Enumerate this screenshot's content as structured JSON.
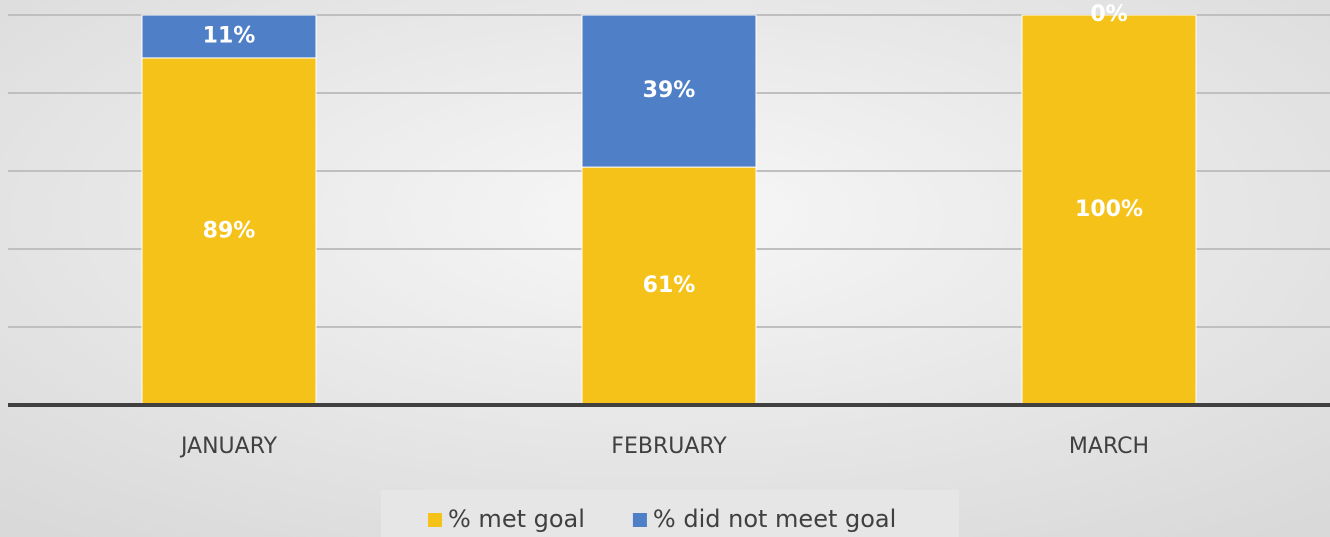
{
  "chart_data": {
    "type": "stacked-bar",
    "categories": [
      "JANUARY",
      "FEBRUARY",
      "MARCH"
    ],
    "series": [
      {
        "name": "% met goal",
        "color": "#f4c219",
        "values": [
          89,
          61,
          100
        ],
        "value_labels": [
          "89%",
          "61%",
          "100%"
        ]
      },
      {
        "name": "% did not meet goal",
        "color": "#4f7fc6",
        "values": [
          11,
          39,
          0
        ],
        "value_labels": [
          "11%",
          "39%",
          "0%"
        ]
      }
    ],
    "ylim": [
      0,
      100
    ],
    "yticks": [
      0,
      20,
      40,
      60,
      80,
      100
    ],
    "grid": true
  }
}
